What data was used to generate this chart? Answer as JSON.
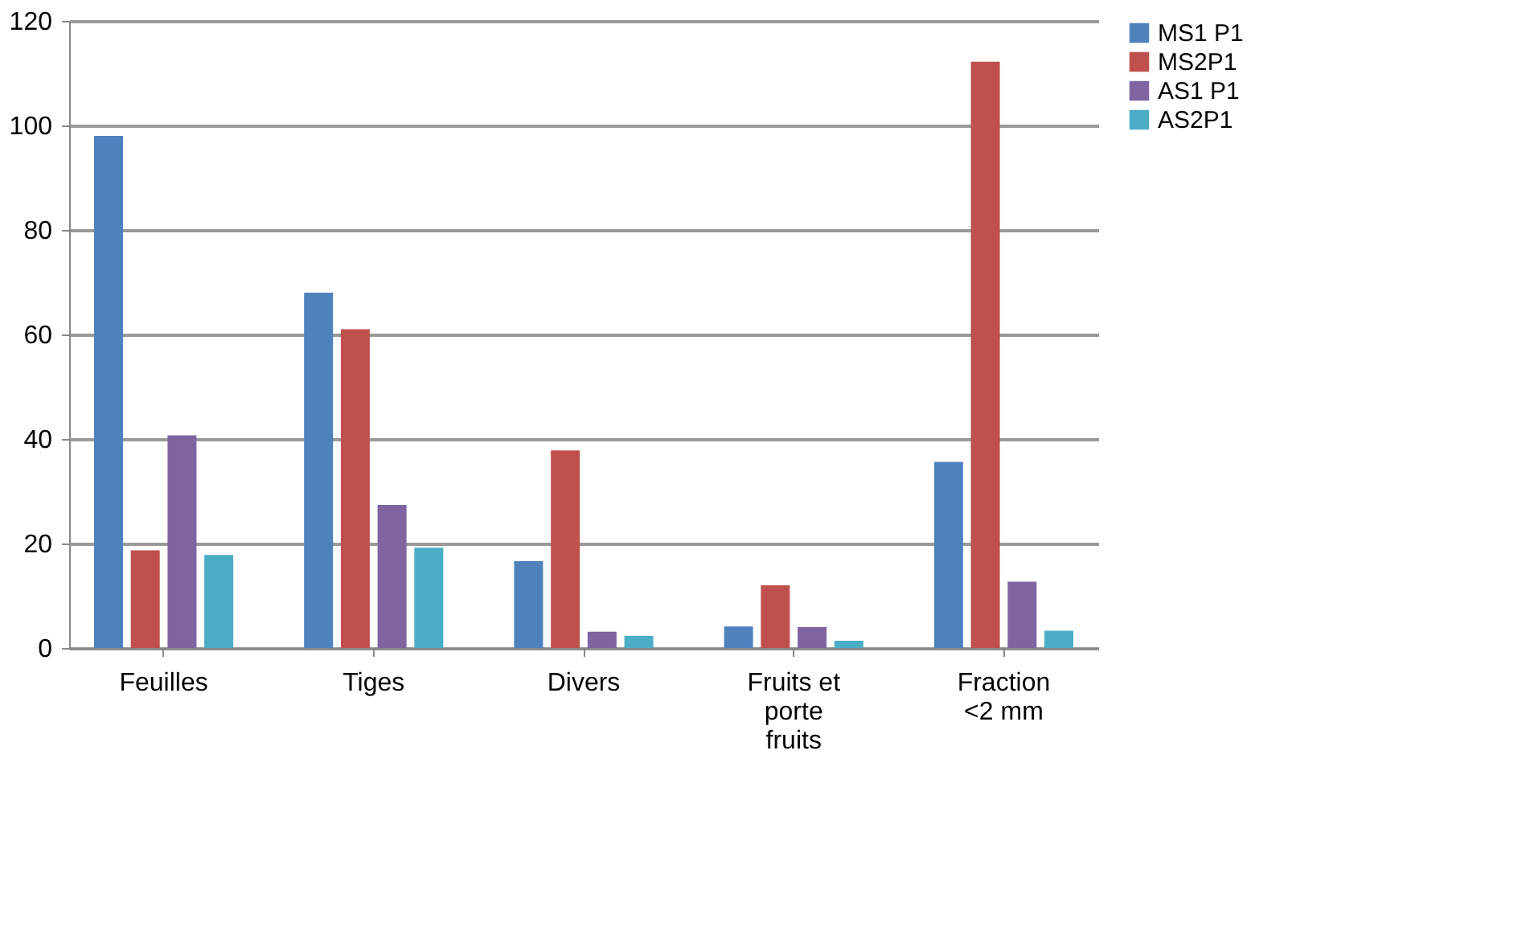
{
  "chart_data": {
    "type": "bar",
    "categories": [
      "Feuilles",
      "Tiges",
      "Divers",
      "Fruits et porte fruits",
      "Fraction <2 mm"
    ],
    "series": [
      {
        "name": "MS1 P1",
        "color": "#4f81bd",
        "values": [
          98,
          68,
          16.6,
          4.1,
          35.6
        ]
      },
      {
        "name": "MS2P1",
        "color": "#c0504d",
        "values": [
          18.7,
          61,
          37.8,
          12,
          112.2
        ]
      },
      {
        "name": "AS1 P1",
        "color": "#8064a2",
        "values": [
          40.7,
          27.4,
          3.1,
          4,
          12.7
        ]
      },
      {
        "name": "AS2P1",
        "color": "#4bacc6",
        "values": [
          17.8,
          19.2,
          2.3,
          1.4,
          3.3
        ]
      }
    ],
    "ylim": [
      0,
      120
    ],
    "yticks": [
      0,
      20,
      40,
      60,
      80,
      100,
      120
    ],
    "grid": "y",
    "legend": "right"
  }
}
